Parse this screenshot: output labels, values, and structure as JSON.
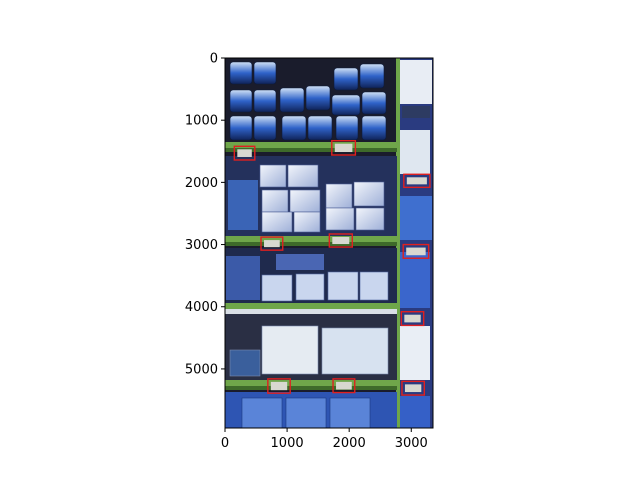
{
  "figure": {
    "image_extent": {
      "x": [
        0,
        3350
      ],
      "y": [
        5950,
        0
      ]
    },
    "x_ticks": [
      {
        "value": 0,
        "label": "0"
      },
      {
        "value": 1000,
        "label": "1000"
      },
      {
        "value": 2000,
        "label": "2000"
      },
      {
        "value": 3000,
        "label": "3000"
      }
    ],
    "y_ticks": [
      {
        "value": 0,
        "label": "0"
      },
      {
        "value": 1000,
        "label": "1000"
      },
      {
        "value": 2000,
        "label": "2000"
      },
      {
        "value": 3000,
        "label": "3000"
      },
      {
        "value": 4000,
        "label": "4000"
      },
      {
        "value": 5000,
        "label": "5000"
      }
    ],
    "box_color": "#e02020",
    "detections": [
      {
        "x0": 150,
        "y0": 1420,
        "x1": 480,
        "y1": 1640
      },
      {
        "x0": 1720,
        "y0": 1330,
        "x1": 2100,
        "y1": 1560
      },
      {
        "x0": 2880,
        "y0": 1870,
        "x1": 3300,
        "y1": 2080
      },
      {
        "x0": 580,
        "y0": 2880,
        "x1": 930,
        "y1": 3090
      },
      {
        "x0": 1680,
        "y0": 2830,
        "x1": 2050,
        "y1": 3040
      },
      {
        "x0": 2870,
        "y0": 3000,
        "x1": 3280,
        "y1": 3220
      },
      {
        "x0": 2840,
        "y0": 4080,
        "x1": 3200,
        "y1": 4300
      },
      {
        "x0": 690,
        "y0": 5160,
        "x1": 1050,
        "y1": 5390
      },
      {
        "x0": 1740,
        "y0": 5160,
        "x1": 2090,
        "y1": 5380
      },
      {
        "x0": 2850,
        "y0": 5200,
        "x1": 3210,
        "y1": 5420
      }
    ]
  }
}
